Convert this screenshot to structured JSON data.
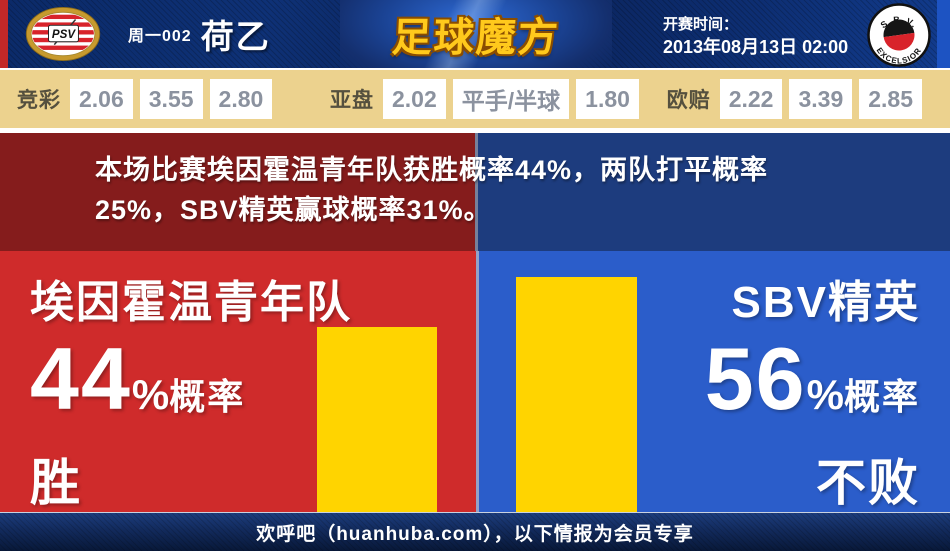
{
  "header": {
    "match_code": "周一002",
    "league": "荷乙",
    "brand": "足球魔方",
    "kickoff_label": "开赛时间：",
    "kickoff_time": "2013年08月13日 02:00",
    "home_logo_text": "PSV",
    "away_logo_top": "S.B.V.",
    "away_logo_bottom": "EXCELSIOR"
  },
  "odds": {
    "jingcai": {
      "label": "竞彩",
      "values": [
        "2.06",
        "3.55",
        "2.80"
      ]
    },
    "yapan": {
      "label": "亚盘",
      "values": [
        "2.02",
        "平手/半球",
        "1.80"
      ]
    },
    "oupei": {
      "label": "欧赔",
      "values": [
        "2.22",
        "3.39",
        "2.85"
      ]
    }
  },
  "summary": {
    "line1": "本场比赛埃因霍温青年队获胜概率44%，两队打平概率",
    "line2": "25%，SBV精英赢球概率31%。"
  },
  "panels": {
    "left": {
      "team": "埃因霍温青年队",
      "value": "44",
      "percent_sign": "%",
      "prob_label": "概率",
      "outcome": "胜"
    },
    "right": {
      "team": "SBV精英",
      "value": "56",
      "percent_sign": "%",
      "prob_label": "概率",
      "outcome": "不败"
    }
  },
  "footer": {
    "text": "欢呼吧（huanhuba.com），以下情报为会员专享"
  },
  "colors": {
    "home_red": "#cf2b2b",
    "away_blue": "#2b5dca",
    "bar_yellow": "#ffd400",
    "banner_red": "#851c1c",
    "banner_blue": "#1d3c7e",
    "odds_bg": "#ecd28e",
    "header_navy": "#0b2a68",
    "brand_gold": "#ffc91c"
  },
  "chart_data": {
    "type": "bar",
    "categories": [
      "埃因霍温青年队 胜",
      "SBV精英 不败"
    ],
    "values": [
      44,
      56
    ],
    "unit": "%",
    "ylim": [
      0,
      62
    ],
    "bar_color": "#ffd400",
    "legend": "none",
    "annotations": [
      "埃因霍温青年队 44%概率 胜",
      "SBV精英 56%概率 不败"
    ]
  }
}
